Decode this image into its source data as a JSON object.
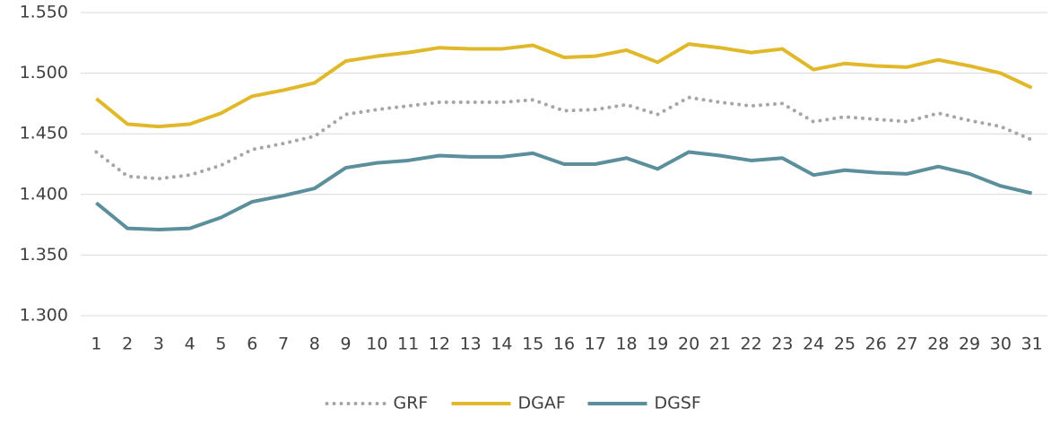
{
  "chart_data": {
    "type": "line",
    "categories": [
      "1",
      "2",
      "3",
      "4",
      "5",
      "6",
      "7",
      "8",
      "9",
      "10",
      "11",
      "12",
      "13",
      "14",
      "15",
      "16",
      "17",
      "18",
      "19",
      "20",
      "21",
      "22",
      "23",
      "24",
      "25",
      "26",
      "27",
      "28",
      "29",
      "30",
      "31"
    ],
    "series": [
      {
        "name": "GRF",
        "color": "#a6a6a6",
        "dash": "dotted",
        "values": [
          1.435,
          1.415,
          1.413,
          1.416,
          1.424,
          1.437,
          1.442,
          1.448,
          1.466,
          1.47,
          1.473,
          1.476,
          1.476,
          1.476,
          1.478,
          1.469,
          1.47,
          1.474,
          1.466,
          1.48,
          1.476,
          1.473,
          1.475,
          1.46,
          1.464,
          1.462,
          1.46,
          1.467,
          1.461,
          1.456,
          1.445
        ]
      },
      {
        "name": "DGAF",
        "color": "#e0b82a",
        "dash": "solid",
        "values": [
          1.479,
          1.458,
          1.456,
          1.458,
          1.467,
          1.481,
          1.486,
          1.492,
          1.51,
          1.514,
          1.517,
          1.521,
          1.52,
          1.52,
          1.523,
          1.513,
          1.514,
          1.519,
          1.509,
          1.524,
          1.521,
          1.517,
          1.52,
          1.503,
          1.508,
          1.506,
          1.505,
          1.511,
          1.506,
          1.5,
          1.488
        ]
      },
      {
        "name": "DGSF",
        "color": "#5b8f9c",
        "dash": "solid",
        "values": [
          1.393,
          1.372,
          1.371,
          1.372,
          1.381,
          1.394,
          1.399,
          1.405,
          1.422,
          1.426,
          1.428,
          1.432,
          1.431,
          1.431,
          1.434,
          1.425,
          1.425,
          1.43,
          1.421,
          1.435,
          1.432,
          1.428,
          1.43,
          1.416,
          1.42,
          1.418,
          1.417,
          1.423,
          1.417,
          1.407,
          1.401
        ]
      }
    ],
    "ylim": [
      1.3,
      1.55
    ],
    "yticks": [
      {
        "value": 1.3,
        "label": "1.300"
      },
      {
        "value": 1.35,
        "label": "1.350"
      },
      {
        "value": 1.4,
        "label": "1.400"
      },
      {
        "value": 1.45,
        "label": "1.450"
      },
      {
        "value": 1.5,
        "label": "1.500"
      },
      {
        "value": 1.55,
        "label": "1.550"
      }
    ],
    "grid": true,
    "legend": "bottom"
  }
}
